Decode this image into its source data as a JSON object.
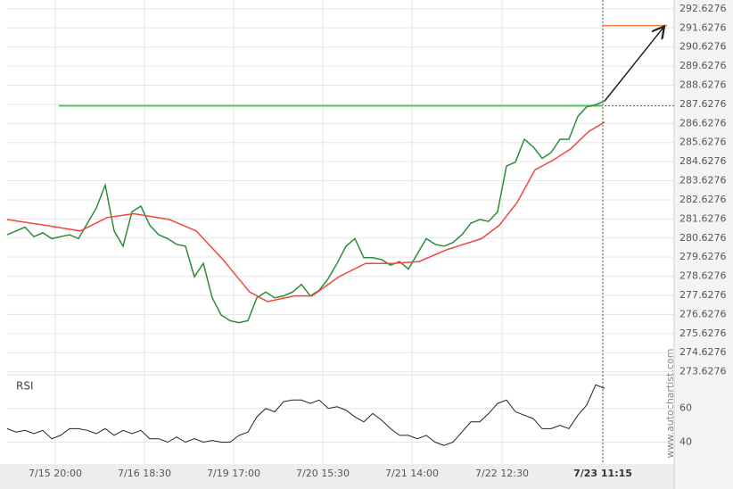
{
  "chart_data": {
    "type": "line",
    "xlim": [
      0,
      67
    ],
    "xticks": [
      {
        "value": 5.4,
        "label": "7/15 20:00"
      },
      {
        "value": 15.4,
        "label": "7/16 18:30"
      },
      {
        "value": 25.4,
        "label": "7/19 17:00"
      },
      {
        "value": 35.4,
        "label": "7/20 15:30"
      },
      {
        "value": 45.4,
        "label": "7/21 14:00"
      },
      {
        "value": 55.5,
        "label": "7/22 12:30"
      },
      {
        "value": 66.8,
        "label": "7/23 11:15"
      }
    ],
    "ylim": [
      273.47,
      293.09
    ],
    "yticks": [
      292.6276,
      291.6276,
      290.6276,
      289.6276,
      288.6276,
      287.6276,
      286.6276,
      285.6276,
      284.6276,
      283.6276,
      282.6276,
      281.6276,
      280.6276,
      279.6276,
      278.6276,
      277.6276,
      276.6276,
      275.6276,
      274.6276,
      273.6276
    ],
    "series": [
      {
        "color": "#2e8b3a",
        "values": [
          280.8,
          281.0,
          281.2,
          280.7,
          280.9,
          280.6,
          280.7,
          280.8,
          280.6,
          281.4,
          282.2,
          283.4,
          281.0,
          280.2,
          282.0,
          282.3,
          281.3,
          280.8,
          280.6,
          280.3,
          280.2,
          278.6,
          279.3,
          277.5,
          276.6,
          276.3,
          276.2,
          276.3,
          277.5,
          277.8,
          277.5,
          277.6,
          277.8,
          278.2,
          277.6,
          277.9,
          278.5,
          279.3,
          280.2,
          280.6,
          279.6,
          279.6,
          279.5,
          279.2,
          279.4,
          279.0,
          279.8,
          280.6,
          280.3,
          280.2,
          280.4,
          280.8,
          281.4,
          281.6,
          281.5,
          282.0,
          284.4,
          284.6,
          285.8,
          285.4,
          284.8,
          285.1,
          285.8,
          285.8,
          287.0,
          287.5,
          287.6,
          287.8
        ]
      },
      {
        "color": "#f0463c",
        "x": [
          0,
          4.2,
          8.2,
          11.2,
          14.2,
          18.2,
          21.2,
          24.2,
          27.2,
          29.2,
          32.2,
          34.2,
          37.2,
          40.2,
          43.2,
          46.2,
          49.2,
          53.2,
          55.2,
          57.2,
          59.2,
          61.2,
          63.2,
          65.2,
          67
        ],
        "values": [
          281.6,
          281.3,
          281.0,
          281.7,
          281.9,
          281.6,
          281.0,
          279.5,
          277.8,
          277.3,
          277.6,
          277.6,
          278.6,
          279.3,
          279.3,
          279.4,
          280.0,
          280.6,
          281.3,
          282.5,
          284.2,
          284.7,
          285.3,
          286.2,
          286.7
        ]
      }
    ],
    "resistance": 287.55,
    "resistance_start": 5.8,
    "forecast": 291.75,
    "watermark": "www.autochartist.com",
    "rsi": {
      "label": "RSI",
      "color": "#222222",
      "ylim": [
        27,
        80
      ],
      "yticks": [
        60,
        40
      ],
      "values": [
        48,
        46,
        47,
        45,
        47,
        42,
        44,
        48,
        48,
        47,
        45,
        48,
        44,
        47,
        45,
        47,
        42,
        42,
        40,
        43,
        40,
        42,
        40,
        41,
        40,
        40,
        44,
        46,
        55,
        60,
        58,
        64,
        65,
        65,
        63,
        65,
        60,
        61,
        59,
        55,
        52,
        57,
        53,
        48,
        44,
        44,
        42,
        44,
        40,
        38,
        40,
        46,
        52,
        52,
        57,
        63,
        65,
        58,
        56,
        54,
        48,
        48,
        50,
        48,
        56,
        62,
        74,
        72
      ]
    }
  }
}
